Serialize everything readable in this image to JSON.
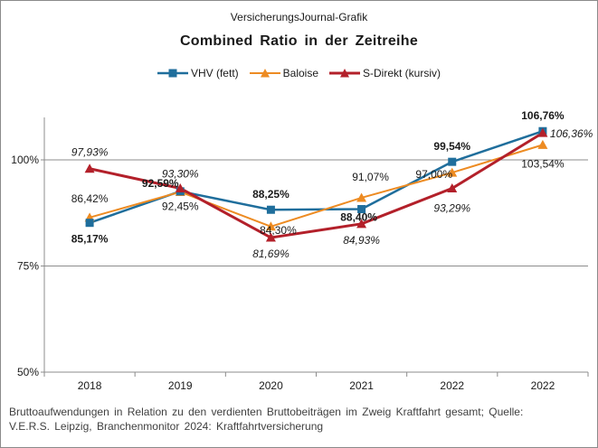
{
  "chart_data": {
    "type": "line",
    "source": "VersicherungsJournal-Grafik",
    "title": "Combined  Ratio  in der Zeitreihe",
    "categories": [
      "2018",
      "2019",
      "2020",
      "2021",
      "2022",
      "2022"
    ],
    "ylim": [
      50,
      110
    ],
    "yticks": [
      50,
      75,
      100
    ],
    "ytick_labels": [
      "50%",
      "75%",
      "100%"
    ],
    "gridlines": [
      75,
      100
    ],
    "legend_position": "top",
    "series": [
      {
        "name": "VHV (fett)",
        "key": "vhv",
        "color": "#1f6e9c",
        "marker": "square",
        "values": [
          85.17,
          92.59,
          88.25,
          88.4,
          99.54,
          106.76
        ],
        "labels": [
          "85,17%",
          "92,59%",
          "88,25%",
          "88,40%",
          "99,54%",
          "106,76%"
        ]
      },
      {
        "name": "Baloise",
        "key": "baloise",
        "color": "#ed8b22",
        "marker": "triangle",
        "values": [
          86.42,
          92.45,
          84.3,
          91.07,
          97.0,
          103.54
        ],
        "labels": [
          "86,42%",
          "92,45%",
          "84,30%",
          "91,07%",
          "97,00%",
          "103,54%"
        ]
      },
      {
        "name": "S-Direkt (kursiv)",
        "key": "sdirekt",
        "color": "#b3202a",
        "marker": "triangle",
        "values": [
          97.93,
          93.3,
          81.69,
          84.93,
          93.29,
          106.36
        ],
        "labels": [
          "97,93%",
          "93,30%",
          "81,69%",
          "84,93%",
          "93,29%",
          "106,36%"
        ]
      }
    ],
    "footnote_lines": [
      "Bruttoaufwendungen  in Relation zu den verdienten  Bruttobeiträgen  im Zweig Kraftfahrt  gesamt; Quelle:",
      "V.E.R.S. Leipzig, Branchenmonitor  2024:  Kraftfahrtversicherung"
    ]
  }
}
